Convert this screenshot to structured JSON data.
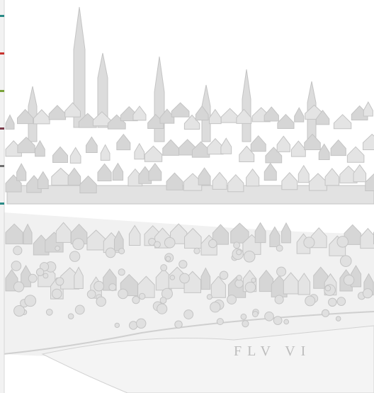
{
  "engraving": {
    "river_label": "FLV VI"
  }
}
